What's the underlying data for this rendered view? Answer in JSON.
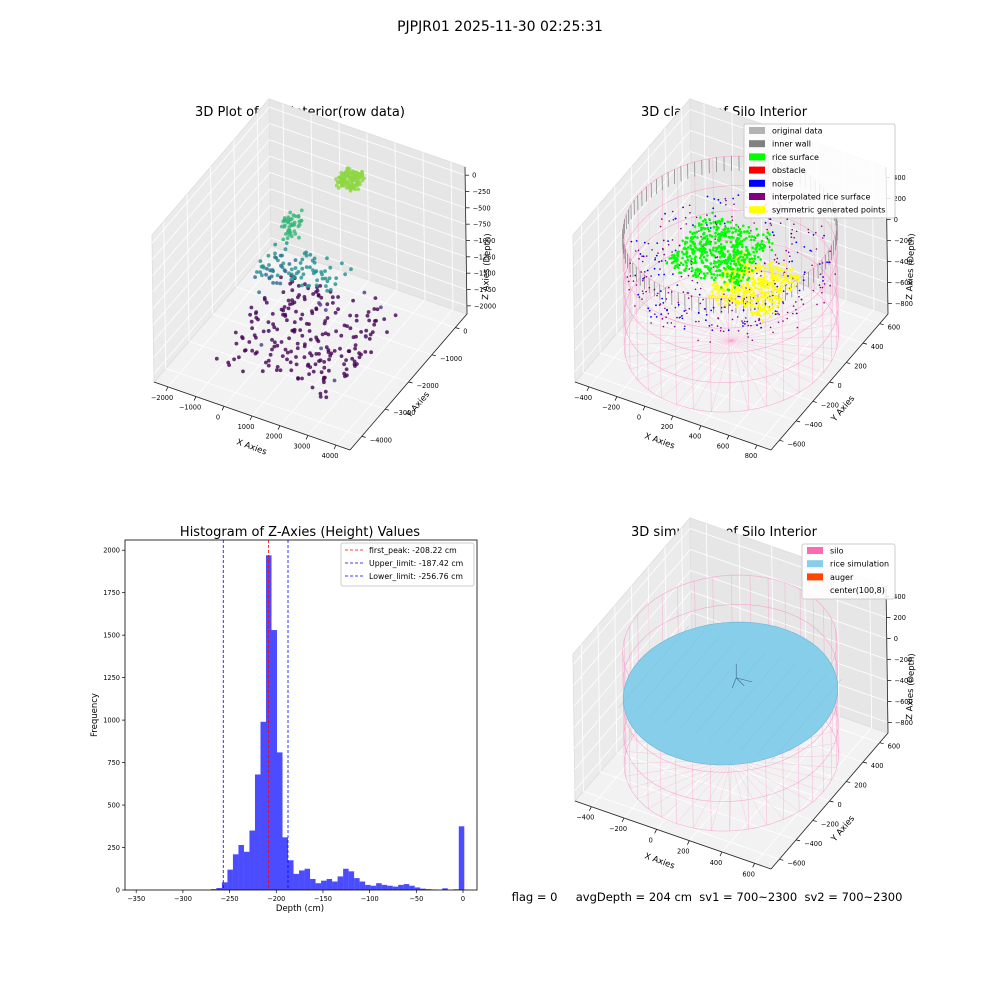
{
  "figure": {
    "suptitle": "PJPJR01 2025-11-30 02:25:31",
    "status_line": "flag = 0     avgDepth = 204 cm  sv1 = 700~2300  sv2 = 700~2300"
  },
  "chart_data": [
    {
      "type": "scatter",
      "projection": "3d",
      "title": "3D Plot of Silo Interior(row data)",
      "xlabel": "X Axies",
      "ylabel": "Y Axies",
      "zlabel": "Z Axies (Depth)",
      "xticks": [
        "−2000",
        "−1000",
        "0",
        "1000",
        "2000",
        "3000",
        "4000"
      ],
      "yticks": [
        "−4000",
        "−3000",
        "−2000",
        "−1000",
        "0"
      ],
      "zticks": [
        "0",
        "−250",
        "−500",
        "−750",
        "−1000",
        "−1250",
        "−1500",
        "−1750",
        "−2000"
      ],
      "colormap": "viridis",
      "grid": true
    },
    {
      "type": "scatter",
      "projection": "3d",
      "title": "3D classify of Silo Interior",
      "xlabel": "X Axies",
      "ylabel": "Y Axies",
      "zlabel": "Z Axies (Depth)",
      "xticks": [
        "−400",
        "−200",
        "0",
        "200",
        "400",
        "600",
        "800"
      ],
      "yticks": [
        "−600",
        "−400",
        "−200",
        "0",
        "200",
        "400",
        "600"
      ],
      "zticks": [
        "−800",
        "−600",
        "−400",
        "−200",
        "0",
        "200",
        "400"
      ],
      "legend_position": "top-right",
      "legend": [
        {
          "label": "original data",
          "color": "#b3b3b3"
        },
        {
          "label": "inner wall",
          "color": "#808080"
        },
        {
          "label": "rice surface",
          "color": "#00ff00"
        },
        {
          "label": "obstacle",
          "color": "#ff0000"
        },
        {
          "label": "noise",
          "color": "#0000ff"
        },
        {
          "label": "interpolated rice surface",
          "color": "#800080"
        },
        {
          "label": "symmetric generated points",
          "color": "#ffff00"
        }
      ],
      "grid": true
    },
    {
      "type": "bar",
      "title": "Histogram of Z-Axies (Height) Values",
      "xlabel": "Depth (cm)",
      "ylabel": "Frequency",
      "xlim": [
        -362,
        15
      ],
      "ylim": [
        0,
        2060
      ],
      "xticks": [
        {
          "value": -350,
          "label": "−350"
        },
        {
          "value": -300,
          "label": "−300"
        },
        {
          "value": -250,
          "label": "−250"
        },
        {
          "value": -200,
          "label": "−200"
        },
        {
          "value": -150,
          "label": "−150"
        },
        {
          "value": -100,
          "label": "−100"
        },
        {
          "value": -50,
          "label": "−50"
        },
        {
          "value": 0,
          "label": "0"
        }
      ],
      "yticks": [
        {
          "value": 0,
          "label": "0"
        },
        {
          "value": 250,
          "label": "250"
        },
        {
          "value": 500,
          "label": "500"
        },
        {
          "value": 750,
          "label": "750"
        },
        {
          "value": 1000,
          "label": "1000"
        },
        {
          "value": 1250,
          "label": "1250"
        },
        {
          "value": 1500,
          "label": "1500"
        },
        {
          "value": 1750,
          "label": "1750"
        },
        {
          "value": 2000,
          "label": "2000"
        }
      ],
      "bar_color": "#0000ff",
      "bin_width": 5.9,
      "bins": [
        [
          -270.0,
          5
        ],
        [
          -264.1,
          12
        ],
        [
          -258.2,
          45
        ],
        [
          -252.3,
          120
        ],
        [
          -246.4,
          210
        ],
        [
          -240.5,
          265
        ],
        [
          -234.6,
          225
        ],
        [
          -228.7,
          350
        ],
        [
          -222.8,
          680
        ],
        [
          -216.9,
          990
        ],
        [
          -211.0,
          1970
        ],
        [
          -205.1,
          1530
        ],
        [
          -199.2,
          810
        ],
        [
          -193.3,
          310
        ],
        [
          -187.4,
          175
        ],
        [
          -181.5,
          95
        ],
        [
          -175.6,
          115
        ],
        [
          -169.7,
          125
        ],
        [
          -163.8,
          65
        ],
        [
          -157.9,
          40
        ],
        [
          -152.0,
          55
        ],
        [
          -146.1,
          65
        ],
        [
          -140.2,
          50
        ],
        [
          -134.3,
          80
        ],
        [
          -128.4,
          125
        ],
        [
          -122.5,
          110
        ],
        [
          -116.6,
          70
        ],
        [
          -110.7,
          50
        ],
        [
          -104.8,
          30
        ],
        [
          -98.9,
          25
        ],
        [
          -93.0,
          40
        ],
        [
          -87.1,
          30
        ],
        [
          -81.2,
          25
        ],
        [
          -75.3,
          20
        ],
        [
          -69.4,
          30
        ],
        [
          -63.5,
          35
        ],
        [
          -57.6,
          25
        ],
        [
          -51.7,
          15
        ],
        [
          -45.8,
          8
        ],
        [
          -39.9,
          5
        ],
        [
          -34.0,
          3
        ],
        [
          -22.2,
          10
        ],
        [
          -10.4,
          4
        ],
        [
          -4.5,
          375
        ]
      ],
      "vlines": [
        {
          "value": -208.22,
          "color": "#ff0000",
          "label": "first_peak: -208.22 cm"
        },
        {
          "value": -187.42,
          "color": "#0000ff",
          "label": "Upper_limit: -187.42 cm"
        },
        {
          "value": -256.76,
          "color": "#0000ff",
          "label": "Lower_limit: -256.76 cm"
        }
      ],
      "legend_position": "top-right",
      "grid": false
    },
    {
      "type": "surface",
      "projection": "3d",
      "title": "3D simulation of Silo Interior",
      "xlabel": "X Axies",
      "ylabel": "Y Axies",
      "zlabel": "Z Axies (Depth)",
      "xticks": [
        "−400",
        "−200",
        "0",
        "200",
        "400",
        "600"
      ],
      "yticks": [
        "−600",
        "−400",
        "−200",
        "0",
        "200",
        "400",
        "600"
      ],
      "zticks": [
        "−800",
        "−600",
        "−400",
        "−200",
        "0",
        "200",
        "400"
      ],
      "legend_position": "top-right",
      "legend": [
        {
          "label": "silo",
          "color": "#ff69b4"
        },
        {
          "label": "rice simulation",
          "color": "#87ceeb"
        },
        {
          "label": "auger",
          "color": "#ff4500"
        },
        {
          "label": "center(100,8)",
          "color": ""
        }
      ],
      "grid": true
    }
  ]
}
